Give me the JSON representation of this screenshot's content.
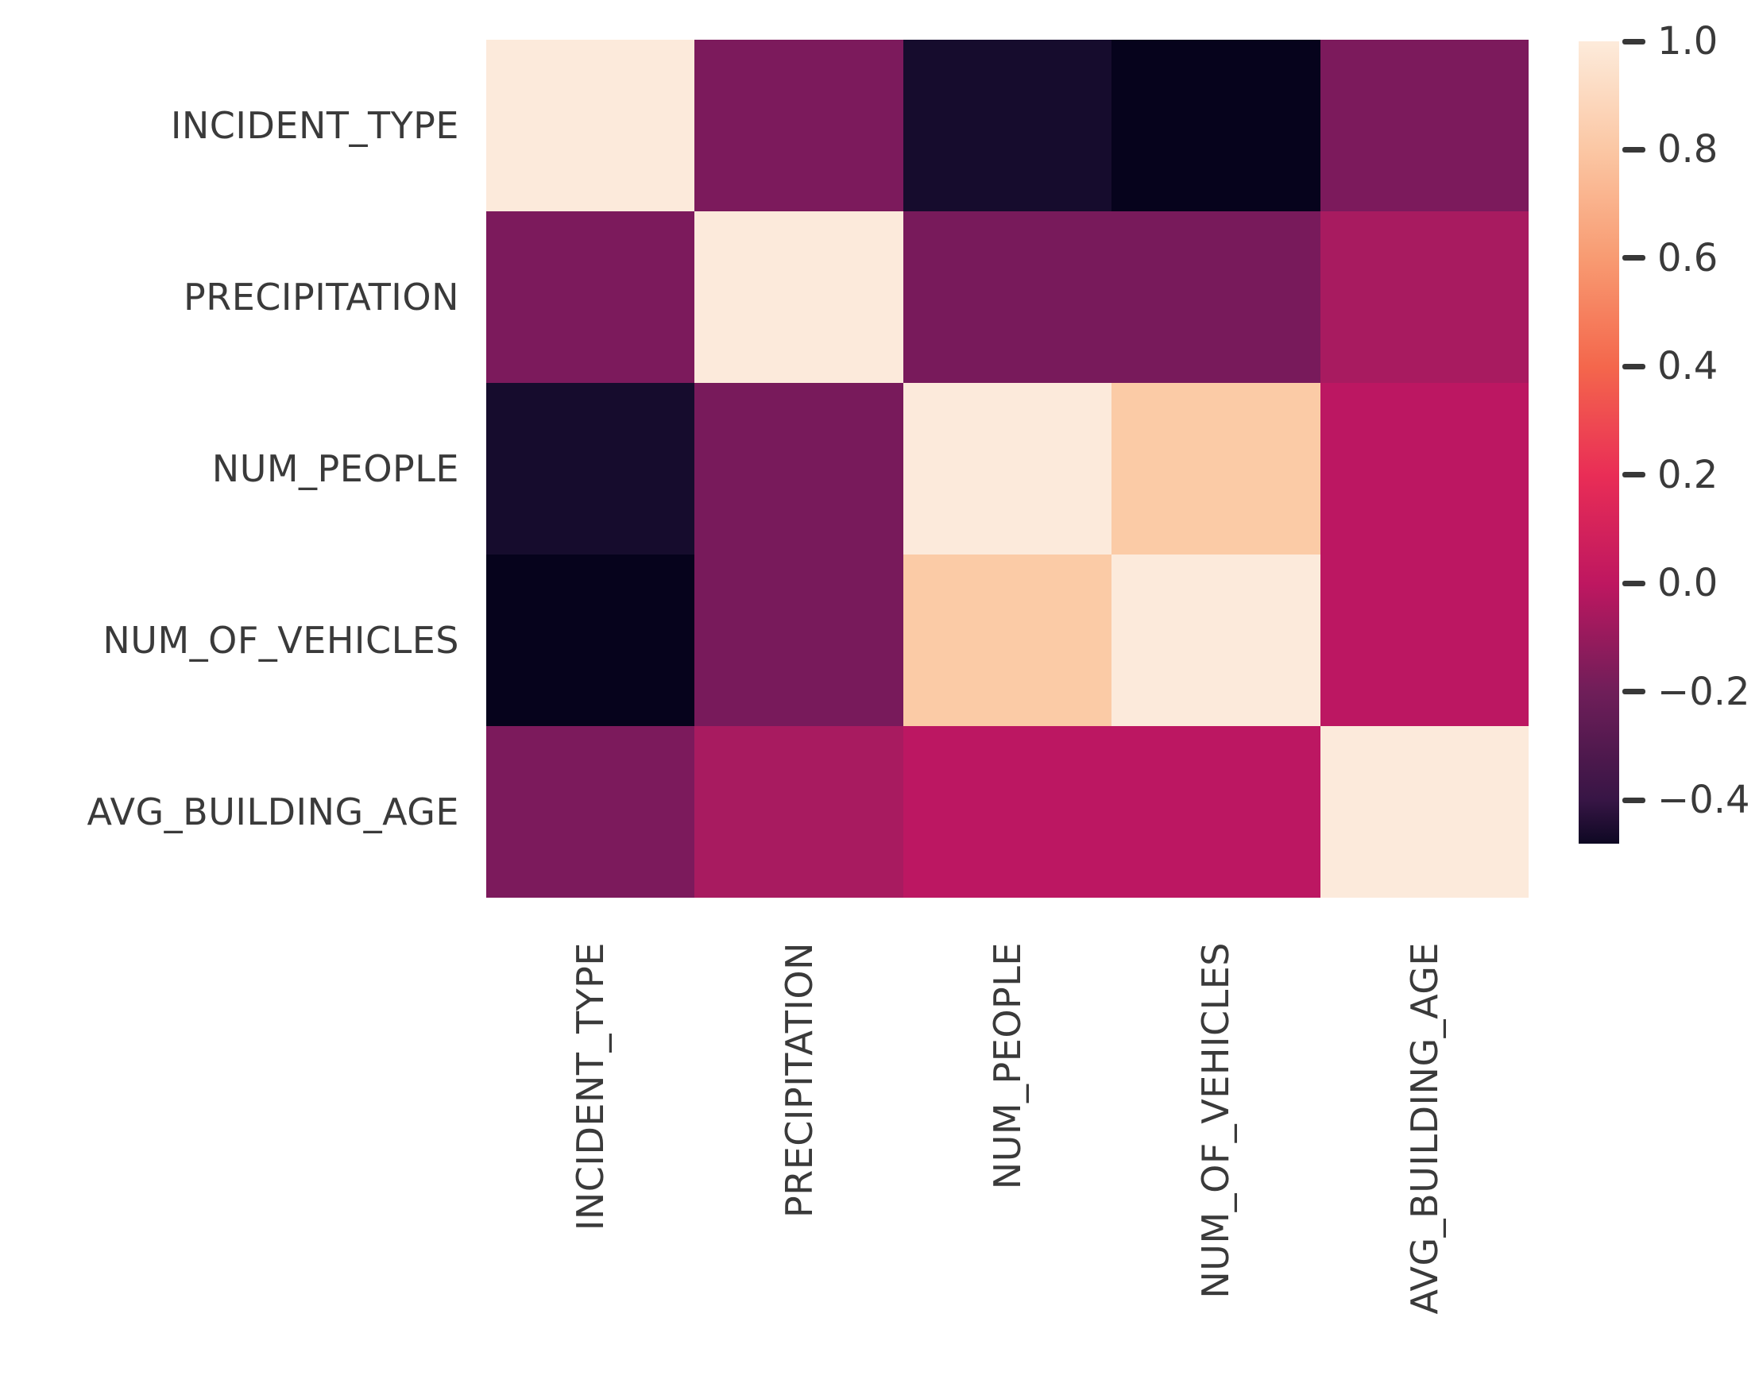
{
  "figure": {
    "background": "#ffffff",
    "title": ""
  },
  "chart_data": {
    "type": "heatmap",
    "subtype": "correlation-matrix",
    "colormap": "rocket",
    "title": "",
    "xlabel": "",
    "ylabel": "",
    "grid": false,
    "categories": [
      "INCIDENT_TYPE",
      "PRECIPITATION",
      "NUM_PEOPLE",
      "NUM_OF_VEHICLES",
      "AVG_BUILDING_AGE"
    ],
    "x_tick_labels": [
      "INCIDENT_TYPE",
      "PRECIPITATION",
      "NUM_PEOPLE",
      "NUM_OF_VEHICLES",
      "AVG_BUILDING_AGE"
    ],
    "y_tick_labels": [
      "INCIDENT_TYPE",
      "PRECIPITATION",
      "NUM_PEOPLE",
      "NUM_OF_VEHICLES",
      "AVG_BUILDING_AGE"
    ],
    "matrix": [
      [
        1.0,
        -0.18,
        -0.44,
        -0.48,
        -0.18
      ],
      [
        -0.18,
        1.0,
        -0.19,
        -0.19,
        -0.06
      ],
      [
        -0.44,
        -0.19,
        1.0,
        0.78,
        -0.01
      ],
      [
        -0.48,
        -0.19,
        0.78,
        1.0,
        -0.01
      ],
      [
        -0.18,
        -0.06,
        -0.01,
        -0.01,
        1.0
      ]
    ],
    "cell_colors": [
      [
        "#FCEADB",
        "#7C1A5C",
        "#160C2D",
        "#06031C",
        "#7C1A5C"
      ],
      [
        "#7C1A5C",
        "#FCEADB",
        "#781A5B",
        "#781A5B",
        "#A81B60"
      ],
      [
        "#160C2D",
        "#781A5B",
        "#FCEADB",
        "#FBCBA6",
        "#BC1762"
      ],
      [
        "#06031C",
        "#781A5B",
        "#FBCBA6",
        "#FCEADB",
        "#BC1762"
      ],
      [
        "#7C1A5C",
        "#A81B60",
        "#BC1762",
        "#BC1762",
        "#FCEADB"
      ]
    ],
    "colorbar": {
      "position": "right",
      "vmax": 1.0,
      "vmin": -0.48,
      "tick_labels": [
        "1.0",
        "0.8",
        "0.6",
        "0.4",
        "0.2",
        "0.0",
        "−0.2",
        "−0.4"
      ],
      "tick_values": [
        1.0,
        0.8,
        0.6,
        0.4,
        0.2,
        0.0,
        -0.2,
        -0.4
      ],
      "gradient_stops": [
        {
          "pos": 0.0,
          "color": "#FDEBDB"
        },
        {
          "pos": 0.135,
          "color": "#FBC7A4"
        },
        {
          "pos": 0.27,
          "color": "#F89B72"
        },
        {
          "pos": 0.405,
          "color": "#F4674C"
        },
        {
          "pos": 0.541,
          "color": "#E92D56"
        },
        {
          "pos": 0.676,
          "color": "#BE1760"
        },
        {
          "pos": 0.811,
          "color": "#6F1E59"
        },
        {
          "pos": 0.946,
          "color": "#371545"
        },
        {
          "pos": 1.0,
          "color": "#0E0823"
        }
      ]
    },
    "text_color": "#3a3a3a"
  }
}
